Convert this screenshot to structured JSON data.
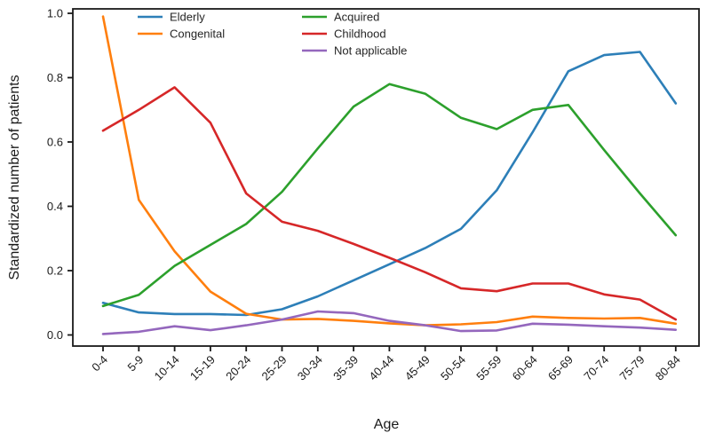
{
  "figure": {
    "ylabel": "Standardized number of patients",
    "xlabel": "Age"
  },
  "chart_data": {
    "type": "line",
    "title": "",
    "xlabel": "Age",
    "ylabel": "Standardized number of patients",
    "categories": [
      "0-4",
      "5-9",
      "10-14",
      "15-19",
      "20-24",
      "25-29",
      "30-34",
      "35-39",
      "40-44",
      "45-49",
      "50-54",
      "55-59",
      "60-64",
      "65-69",
      "70-74",
      "75-79",
      "80-84"
    ],
    "ylim": [
      0.0,
      1.0
    ],
    "yticks": [
      0.0,
      0.2,
      0.4,
      0.6,
      0.8,
      1.0
    ],
    "grid": false,
    "legend_position": "upper-left-inside, two columns, frameless",
    "series": [
      {
        "name": "Elderly",
        "color": "#2d7fb8",
        "legend_column": 0,
        "values": [
          0.1,
          0.07,
          0.065,
          0.065,
          0.062,
          0.08,
          0.12,
          0.17,
          0.22,
          0.27,
          0.33,
          0.45,
          0.63,
          0.82,
          0.87,
          0.88,
          0.72
        ]
      },
      {
        "name": "Congenital",
        "color": "#ff7f0e",
        "legend_column": 0,
        "values": [
          0.99,
          0.42,
          0.26,
          0.135,
          0.066,
          0.048,
          0.05,
          0.044,
          0.036,
          0.03,
          0.033,
          0.04,
          0.057,
          0.053,
          0.051,
          0.053,
          0.035
        ]
      },
      {
        "name": "Acquired",
        "color": "#2ca02c",
        "legend_column": 1,
        "values": [
          0.09,
          0.125,
          0.215,
          0.28,
          0.345,
          0.445,
          0.58,
          0.71,
          0.78,
          0.75,
          0.675,
          0.64,
          0.7,
          0.715,
          0.575,
          0.44,
          0.31
        ]
      },
      {
        "name": "Childhood",
        "color": "#d62728",
        "legend_column": 1,
        "values": [
          0.635,
          0.7,
          0.77,
          0.66,
          0.44,
          0.352,
          0.324,
          0.283,
          0.24,
          0.195,
          0.145,
          0.136,
          0.16,
          0.16,
          0.126,
          0.11,
          0.048
        ]
      },
      {
        "name": "Not applicable",
        "color": "#9467bd",
        "legend_column": 1,
        "values": [
          0.003,
          0.01,
          0.027,
          0.015,
          0.03,
          0.048,
          0.073,
          0.068,
          0.044,
          0.03,
          0.012,
          0.014,
          0.035,
          0.032,
          0.027,
          0.023,
          0.016
        ]
      }
    ]
  }
}
